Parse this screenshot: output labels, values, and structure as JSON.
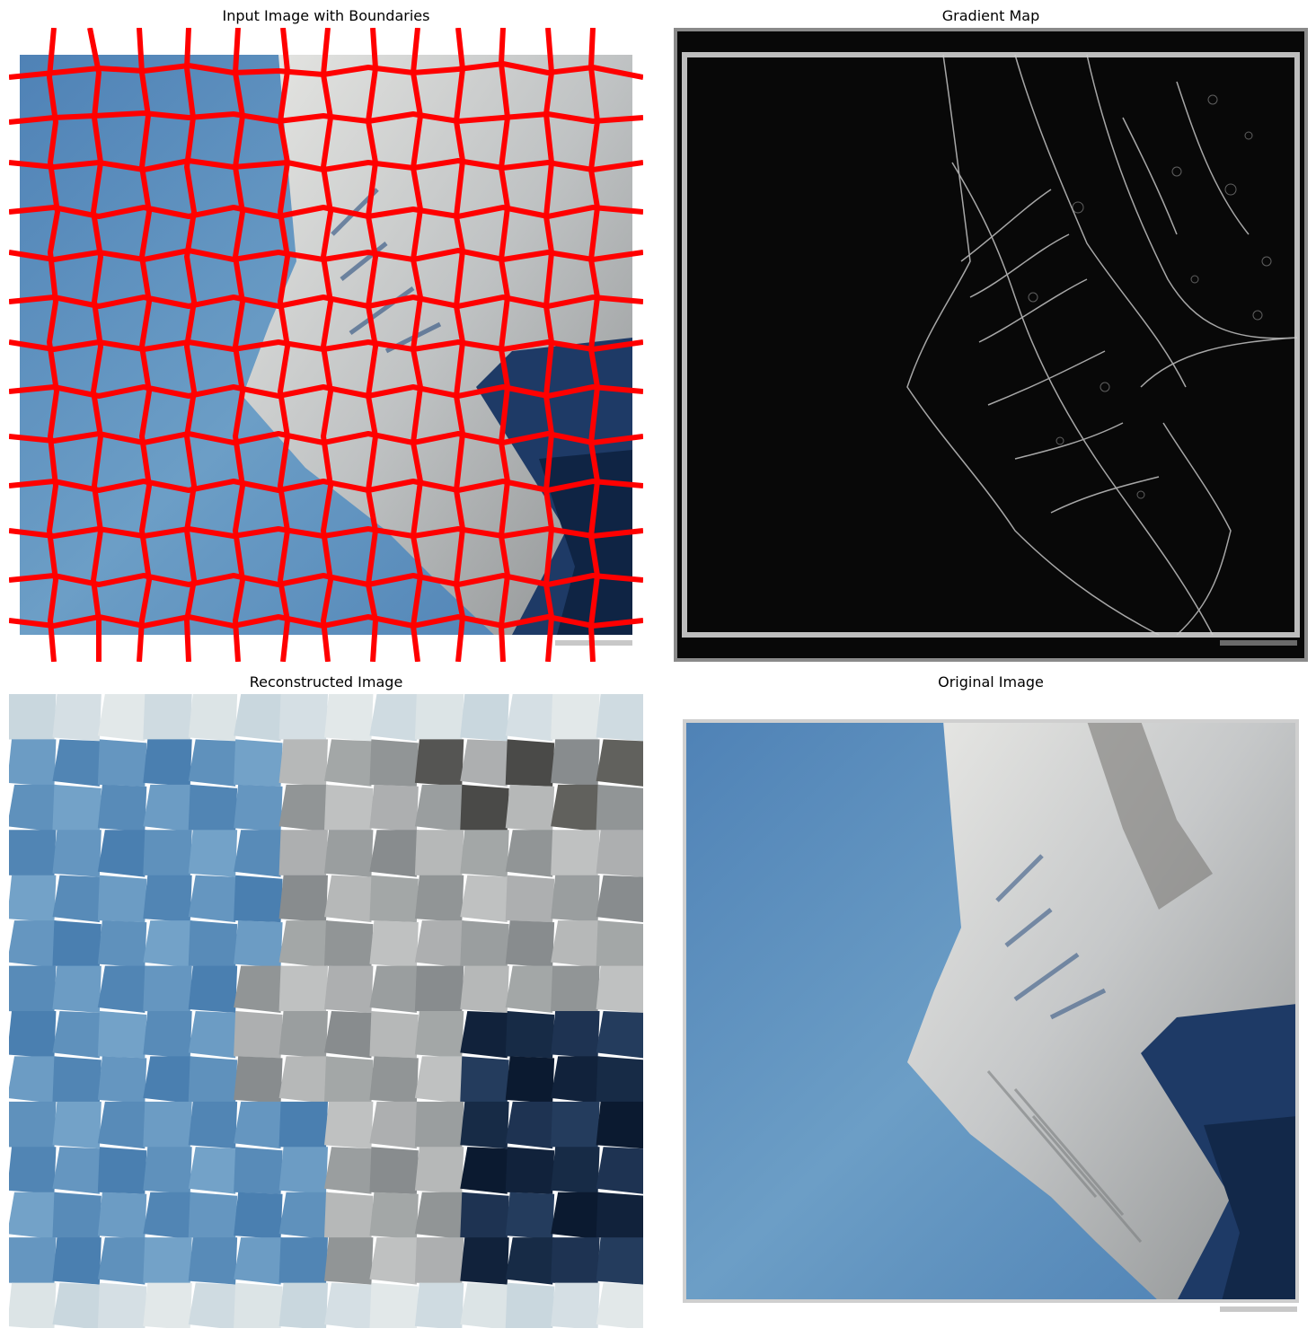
{
  "panels": [
    {
      "title": "Input Image with Boundaries"
    },
    {
      "title": "Gradient Map"
    },
    {
      "title": "Reconstructed Image"
    },
    {
      "title": "Original Image"
    }
  ],
  "colors": {
    "sky": "#6c9ec6",
    "sky_dark": "#4d80b3",
    "snow": "#d9dcdd",
    "rock": "#8a8d8f",
    "shadow": "#1f3a66",
    "boundary": "#ff0000",
    "gradient_bg": "#080808",
    "gradient_edge": "#bdbdbd"
  }
}
